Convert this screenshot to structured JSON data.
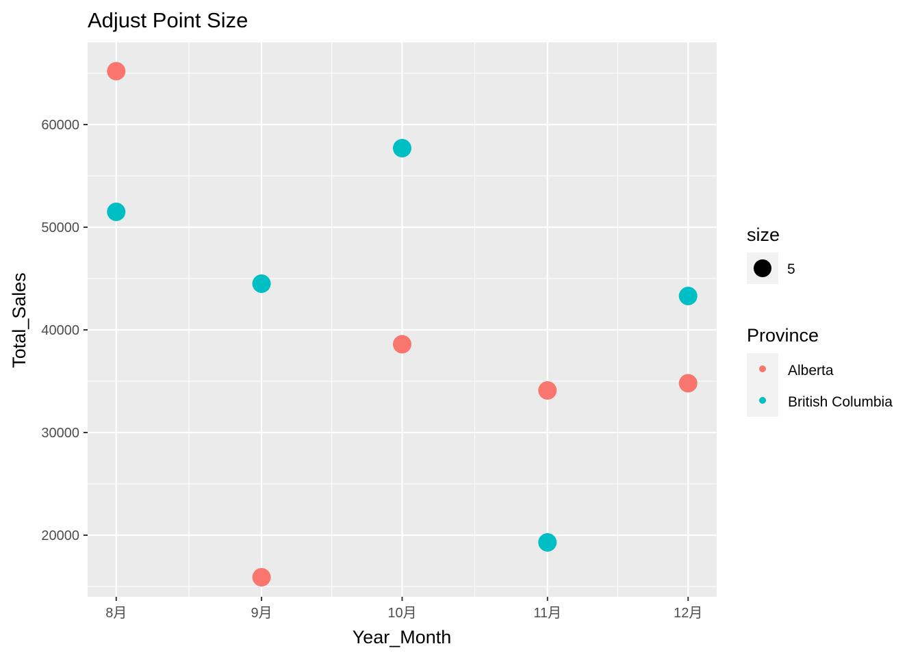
{
  "chart_data": {
    "type": "scatter",
    "title": "Adjust Point Size",
    "xlabel": "Year_Month",
    "ylabel": "Total_Sales",
    "categories": [
      "8月",
      "9月",
      "10月",
      "11月",
      "12月"
    ],
    "x_scale": "date",
    "x_dates": [
      "2023-08-01",
      "2023-09-01",
      "2023-10-01",
      "2023-11-01",
      "2023-12-01"
    ],
    "ylim": [
      14000,
      68000
    ],
    "y_ticks": [
      20000,
      30000,
      40000,
      50000,
      60000
    ],
    "y_tick_labels": [
      "20000",
      "30000",
      "40000",
      "50000",
      "60000"
    ],
    "grid": true,
    "legend_position": "right",
    "background": "#ebebeb",
    "size_legend": {
      "title": "size",
      "label": "5",
      "color": "#000000"
    },
    "color_legend_title": "Province",
    "series": [
      {
        "name": "Alberta",
        "color": "#f8766d",
        "values": [
          65200,
          15900,
          38600,
          34100,
          34800
        ]
      },
      {
        "name": "British Columbia",
        "color": "#00bfc4",
        "values": [
          51500,
          44500,
          57700,
          19300,
          43300
        ]
      }
    ]
  }
}
